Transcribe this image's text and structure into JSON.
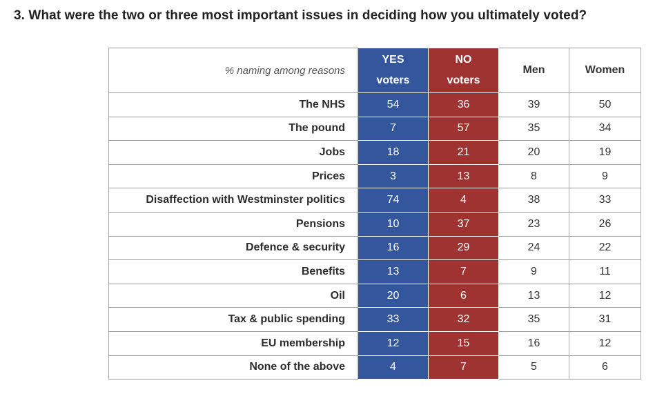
{
  "question": "3. What were the two or three most important issues in deciding how you ultimately voted?",
  "table": {
    "header": {
      "label": "% naming among reasons",
      "yes_line1": "YES",
      "yes_line2": "voters",
      "no_line1": "NO",
      "no_line2": "voters",
      "men": "Men",
      "women": "Women"
    },
    "rows": [
      {
        "issue": "The NHS",
        "yes": "54",
        "no": "36",
        "men": "39",
        "women": "50"
      },
      {
        "issue": "The pound",
        "yes": "7",
        "no": "57",
        "men": "35",
        "women": "34"
      },
      {
        "issue": "Jobs",
        "yes": "18",
        "no": "21",
        "men": "20",
        "women": "19"
      },
      {
        "issue": "Prices",
        "yes": "3",
        "no": "13",
        "men": "8",
        "women": "9"
      },
      {
        "issue": "Disaffection with Westminster politics",
        "yes": "74",
        "no": "4",
        "men": "38",
        "women": "33"
      },
      {
        "issue": "Pensions",
        "yes": "10",
        "no": "37",
        "men": "23",
        "women": "26"
      },
      {
        "issue": "Defence & security",
        "yes": "16",
        "no": "29",
        "men": "24",
        "women": "22"
      },
      {
        "issue": "Benefits",
        "yes": "13",
        "no": "7",
        "men": "9",
        "women": "11"
      },
      {
        "issue": "Oil",
        "yes": "20",
        "no": "6",
        "men": "13",
        "women": "12"
      },
      {
        "issue": "Tax & public spending",
        "yes": "33",
        "no": "32",
        "men": "35",
        "women": "31"
      },
      {
        "issue": "EU membership",
        "yes": "12",
        "no": "15",
        "men": "16",
        "women": "12"
      },
      {
        "issue": "None of the above",
        "yes": "4",
        "no": "7",
        "men": "5",
        "women": "6"
      }
    ]
  },
  "colors": {
    "yes_column": "#34569c",
    "no_column": "#9e3331"
  }
}
